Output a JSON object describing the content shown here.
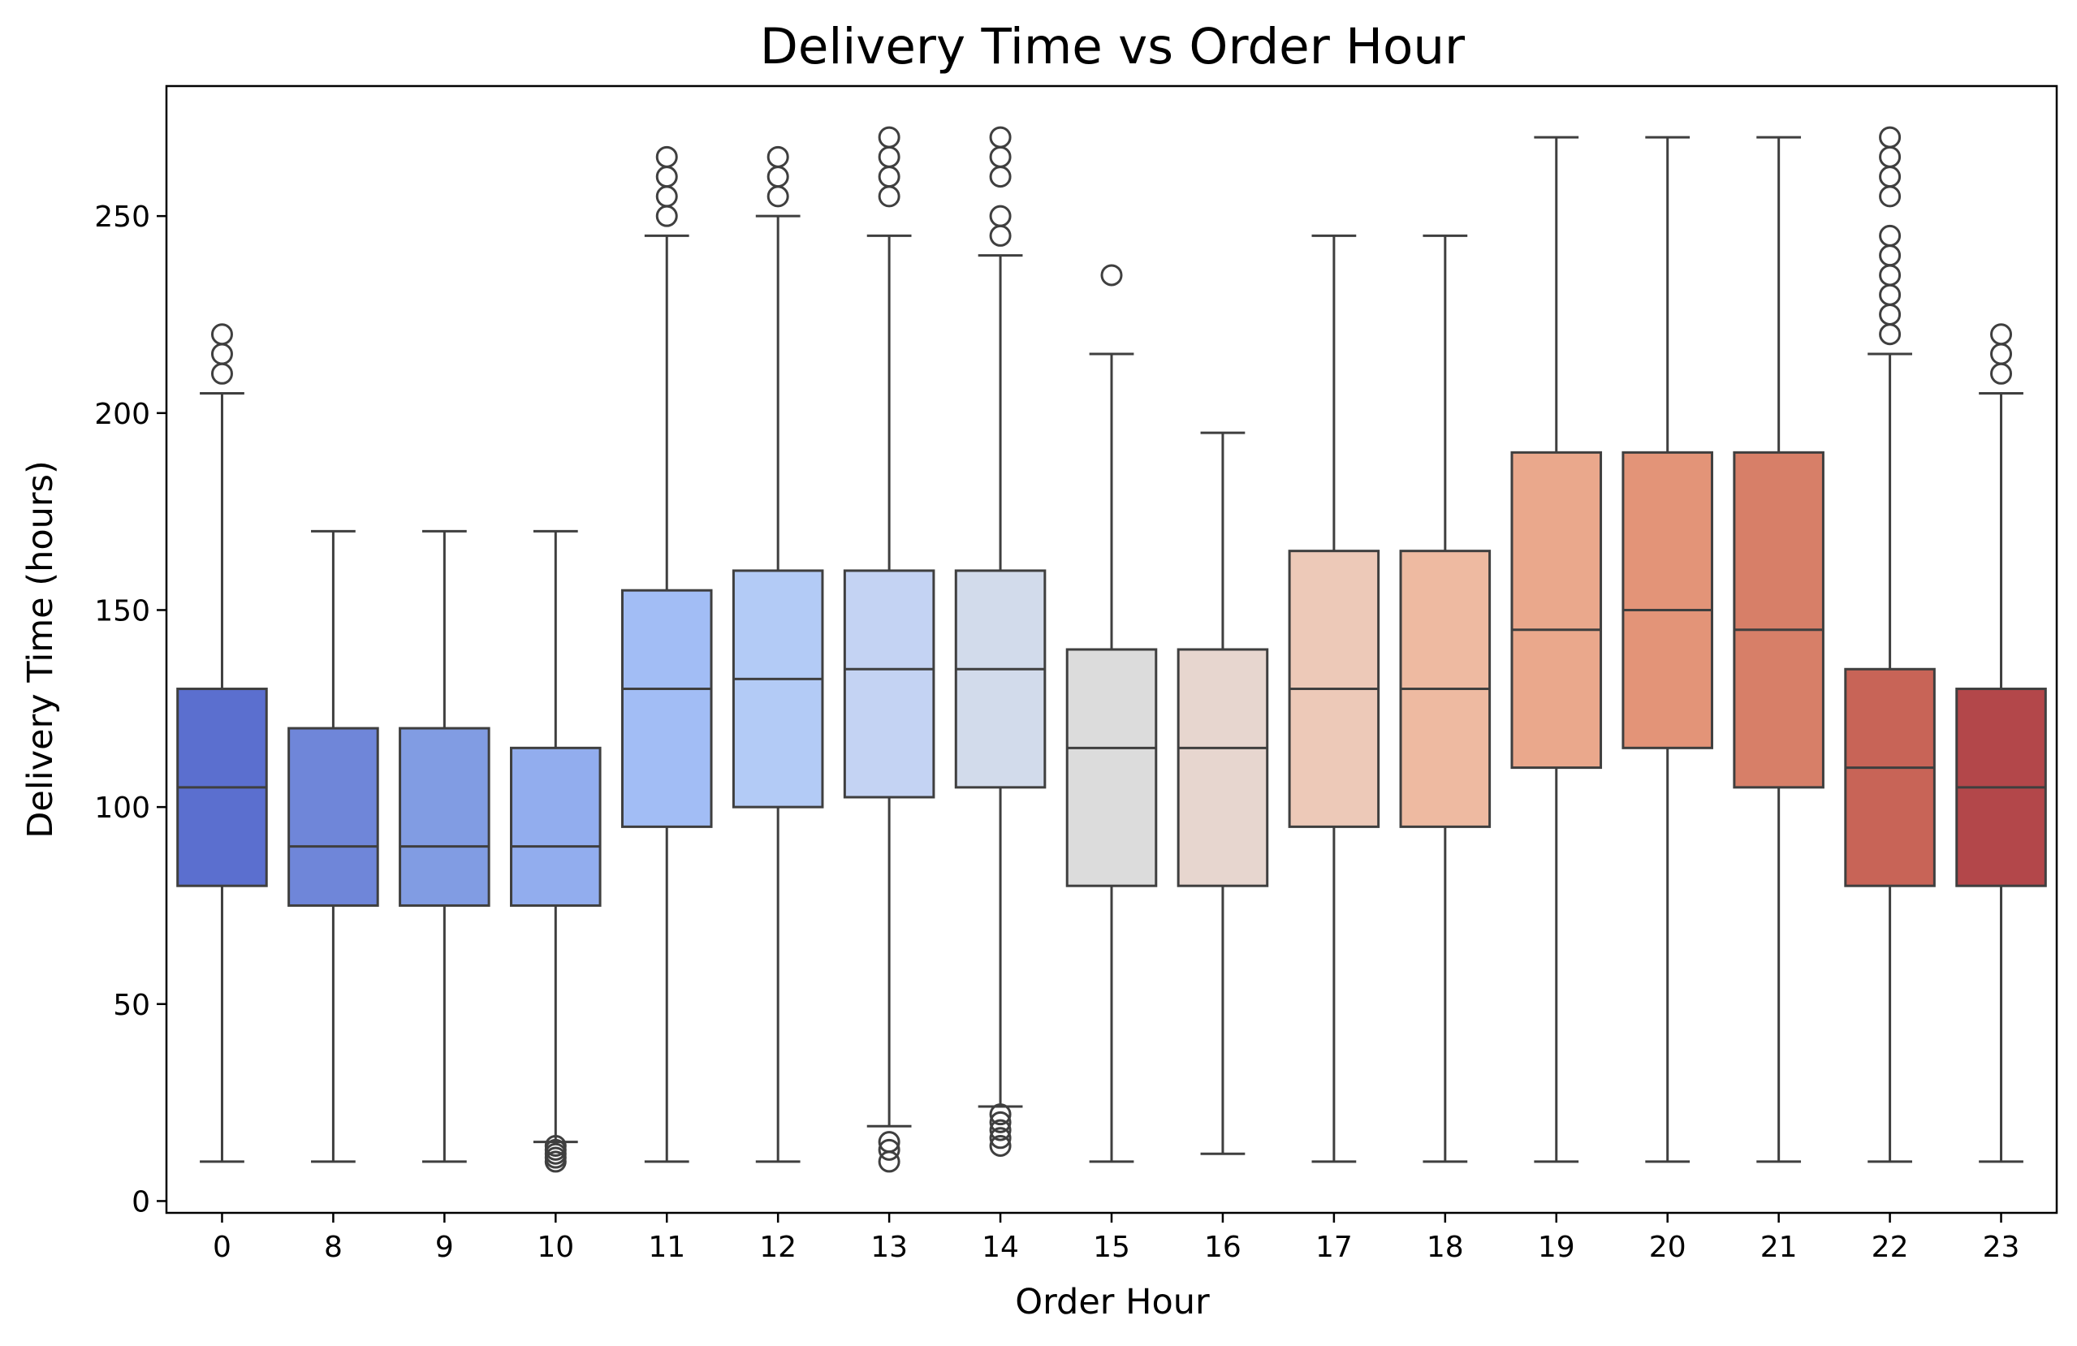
{
  "chart_data": {
    "type": "box",
    "title": "Delivery Time vs Order Hour",
    "xlabel": "Order Hour",
    "ylabel": "Delivery Time (hours)",
    "ylim": [
      -3,
      283
    ],
    "yticks": [
      0,
      50,
      100,
      150,
      200,
      250
    ],
    "grid": false,
    "legend": "none",
    "categories": [
      "0",
      "8",
      "9",
      "10",
      "11",
      "12",
      "13",
      "14",
      "15",
      "16",
      "17",
      "18",
      "19",
      "20",
      "21",
      "22",
      "23"
    ],
    "boxes": [
      {
        "category": "0",
        "whisker_low": 10,
        "q1": 80,
        "median": 105,
        "q3": 130,
        "whisker_high": 205,
        "outliers": [
          210,
          215,
          220
        ],
        "color": "#5b6fcf"
      },
      {
        "category": "8",
        "whisker_low": 10,
        "q1": 75,
        "median": 90,
        "q3": 120,
        "whisker_high": 170,
        "outliers": [],
        "color": "#6f86d9"
      },
      {
        "category": "9",
        "whisker_low": 10,
        "q1": 75,
        "median": 90,
        "q3": 120,
        "whisker_high": 170,
        "outliers": [],
        "color": "#819ce3"
      },
      {
        "category": "10",
        "whisker_low": 15,
        "q1": 75,
        "median": 90,
        "q3": 115,
        "whisker_high": 170,
        "outliers": [
          10,
          11,
          12,
          13,
          14
        ],
        "color": "#92adee"
      },
      {
        "category": "11",
        "whisker_low": 10,
        "q1": 95,
        "median": 130,
        "q3": 155,
        "whisker_high": 245,
        "outliers": [
          250,
          255,
          260,
          265
        ],
        "color": "#a2bdf5"
      },
      {
        "category": "12",
        "whisker_low": 10,
        "q1": 100,
        "median": 132.5,
        "q3": 160,
        "whisker_high": 250,
        "outliers": [
          255,
          260,
          265
        ],
        "color": "#b3cbf6"
      },
      {
        "category": "13",
        "whisker_low": 19,
        "q1": 102.5,
        "median": 135,
        "q3": 160,
        "whisker_high": 245,
        "outliers": [
          10,
          13,
          15,
          255,
          260,
          265,
          270
        ],
        "color": "#c4d3f3"
      },
      {
        "category": "14",
        "whisker_low": 24,
        "q1": 105,
        "median": 135,
        "q3": 160,
        "whisker_high": 240,
        "outliers": [
          14,
          16,
          18,
          20,
          22,
          245,
          250,
          260,
          265,
          270
        ],
        "color": "#d2dbeb"
      },
      {
        "category": "15",
        "whisker_low": 10,
        "q1": 80,
        "median": 115,
        "q3": 140,
        "whisker_high": 215,
        "outliers": [
          235
        ],
        "color": "#dcdcdc"
      },
      {
        "category": "16",
        "whisker_low": 12,
        "q1": 80,
        "median": 115,
        "q3": 140,
        "whisker_high": 195,
        "outliers": [],
        "color": "#e7d6cf"
      },
      {
        "category": "17",
        "whisker_low": 10,
        "q1": 95,
        "median": 130,
        "q3": 165,
        "whisker_high": 245,
        "outliers": [],
        "color": "#edc9b8"
      },
      {
        "category": "18",
        "whisker_low": 10,
        "q1": 95,
        "median": 130,
        "q3": 165,
        "whisker_high": 245,
        "outliers": [],
        "color": "#eebaa1"
      },
      {
        "category": "19",
        "whisker_low": 10,
        "q1": 110,
        "median": 145,
        "q3": 190,
        "whisker_high": 270,
        "outliers": [],
        "color": "#eaa88c"
      },
      {
        "category": "20",
        "whisker_low": 10,
        "q1": 115,
        "median": 150,
        "q3": 190,
        "whisker_high": 270,
        "outliers": [],
        "color": "#e39478"
      },
      {
        "category": "21",
        "whisker_low": 10,
        "q1": 105,
        "median": 145,
        "q3": 190,
        "whisker_high": 270,
        "outliers": [],
        "color": "#d77f68"
      },
      {
        "category": "22",
        "whisker_low": 10,
        "q1": 80,
        "median": 110,
        "q3": 135,
        "whisker_high": 215,
        "outliers": [
          220,
          225,
          230,
          235,
          240,
          245,
          255,
          260,
          265,
          270
        ],
        "color": "#c86457"
      },
      {
        "category": "23",
        "whisker_low": 10,
        "q1": 80,
        "median": 105,
        "q3": 130,
        "whisker_high": 205,
        "outliers": [
          210,
          215,
          220
        ],
        "color": "#b3474a"
      }
    ]
  }
}
